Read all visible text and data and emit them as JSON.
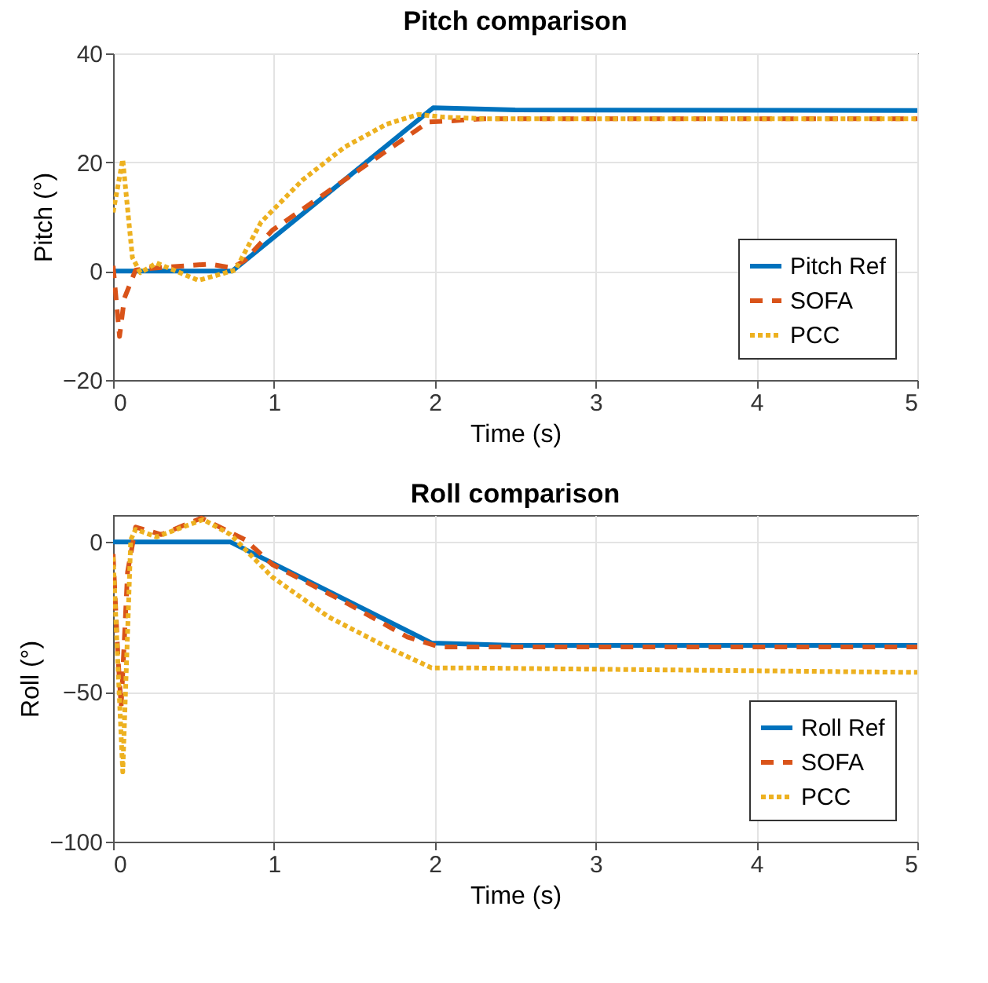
{
  "chart_data": [
    {
      "type": "line",
      "title": "Pitch comparison",
      "xlabel": "Time (s)",
      "ylabel": "Pitch (°)",
      "xlim": [
        0,
        5
      ],
      "ylim": [
        -20,
        40
      ],
      "xticks": [
        0,
        1,
        2,
        3,
        4,
        5
      ],
      "yticks": [
        -20,
        0,
        20,
        40
      ],
      "grid": true,
      "legend": "bottom right",
      "series": [
        {
          "name": "Pitch Ref",
          "color": "#0072bd",
          "line_style": "solid",
          "x": [
            0,
            0.74,
            1.99,
            2.5,
            5
          ],
          "values": [
            0,
            0,
            30,
            29.6,
            29.5
          ]
        },
        {
          "name": "SOFA",
          "color": "#d95319",
          "line_style": "dashed",
          "x": [
            0,
            0.04,
            0.07,
            0.14,
            0.27,
            0.6,
            0.74,
            0.82,
            0.99,
            1.5,
            1.96,
            2.1,
            2.3,
            5
          ],
          "values": [
            1,
            -12,
            -5,
            0.2,
            0.6,
            1.3,
            0.6,
            2,
            7.5,
            18,
            27.4,
            27.6,
            28,
            28
          ]
        },
        {
          "name": "PCC",
          "color": "#edb120",
          "line_style": "dotted",
          "x": [
            0,
            0.06,
            0.12,
            0.17,
            0.27,
            0.53,
            0.76,
            0.92,
            1.18,
            1.44,
            1.7,
            1.9,
            2.05,
            2.3,
            5
          ],
          "values": [
            10.8,
            20.5,
            2.5,
            -0.3,
            1.5,
            -1.7,
            0.2,
            9,
            16.8,
            22.8,
            27,
            28.8,
            28.3,
            28,
            28
          ]
        }
      ]
    },
    {
      "type": "line",
      "title": "Roll comparison",
      "xlabel": "Time (s)",
      "ylabel": "Roll (°)",
      "xlim": [
        0,
        5
      ],
      "ylim": [
        -100,
        9
      ],
      "xticks": [
        0,
        1,
        2,
        3,
        4,
        5
      ],
      "yticks": [
        -100,
        -50,
        0
      ],
      "grid": true,
      "legend": "bottom right",
      "series": [
        {
          "name": "Roll Ref",
          "color": "#0072bd",
          "line_style": "solid",
          "x": [
            0,
            0.73,
            1.98,
            2.5,
            5
          ],
          "values": [
            0,
            0,
            -33.7,
            -34.5,
            -34.5
          ]
        },
        {
          "name": "SOFA",
          "color": "#d95319",
          "line_style": "dashed",
          "x": [
            0,
            0.03,
            0.05,
            0.09,
            0.14,
            0.3,
            0.55,
            0.82,
            0.99,
            1.44,
            1.83,
            2.03,
            5
          ],
          "values": [
            -4,
            -38,
            -55,
            -10,
            5,
            2.5,
            8,
            0.8,
            -7.5,
            -20,
            -31.7,
            -35,
            -35
          ]
        },
        {
          "name": "PCC",
          "color": "#edb120",
          "line_style": "dotted",
          "x": [
            0,
            0.06,
            0.11,
            0.14,
            0.27,
            0.56,
            0.73,
            0.99,
            1.34,
            1.7,
            1.98,
            2.16,
            5
          ],
          "values": [
            -5,
            -76.7,
            0.8,
            4.2,
            1.7,
            7.5,
            2.5,
            -11.7,
            -25,
            -35,
            -42,
            -42,
            -43.5
          ]
        }
      ]
    }
  ]
}
